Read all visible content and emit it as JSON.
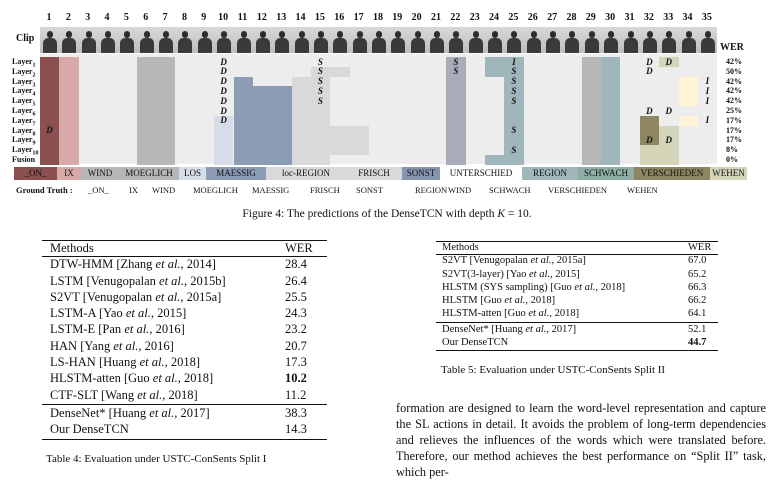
{
  "figure": {
    "column_numbers": [
      "1",
      "2",
      "3",
      "4",
      "5",
      "6",
      "7",
      "8",
      "9",
      "10",
      "11",
      "12",
      "13",
      "14",
      "15",
      "16",
      "17",
      "18",
      "19",
      "20",
      "21",
      "22",
      "23",
      "24",
      "25",
      "26",
      "27",
      "28",
      "29",
      "30",
      "31",
      "32",
      "33",
      "34",
      "35"
    ],
    "clip_label": "Clip",
    "wer_title": "WER",
    "layers": [
      {
        "label": "Layer",
        "sub": "1",
        "wer": "42%"
      },
      {
        "label": "Layer",
        "sub": "2",
        "wer": "50%"
      },
      {
        "label": "Layer",
        "sub": "3",
        "wer": "42%"
      },
      {
        "label": "Layer",
        "sub": "4",
        "wer": "42%"
      },
      {
        "label": "Layer",
        "sub": "5",
        "wer": "42%"
      },
      {
        "label": "Layer",
        "sub": "6",
        "wer": "25%"
      },
      {
        "label": "Layer",
        "sub": "7",
        "wer": "17%"
      },
      {
        "label": "Layer",
        "sub": "8",
        "wer": "17%"
      },
      {
        "label": "Layer",
        "sub": "9",
        "wer": "17%"
      },
      {
        "label": "Layer",
        "sub": "10",
        "wer": "8%"
      },
      {
        "label": "Fusion",
        "sub": "",
        "wer": "0%"
      }
    ],
    "marks": [
      "D",
      "S",
      "I"
    ],
    "predictions": [
      "_ON_",
      "IX",
      "WIND",
      "MOEGLICH",
      "LOS",
      "MAESSIG",
      "loc-REGION",
      "FRISCH",
      "SONST",
      "UNTERSCHIED",
      "REGION",
      "SCHWACH",
      "VERSCHIEDEN",
      "WEHEN"
    ],
    "ground_truth_label": "Ground Truth :",
    "ground_truth": [
      "_ON_",
      "IX",
      "WIND",
      "MOEGLICH",
      "MAESSIG",
      "FRISCH",
      "SONST",
      "REGION",
      "WIND",
      "SCHWACH",
      "VERSCHIEDEN",
      "WEHEN"
    ],
    "caption": "Figure 4: The predictions of the DenseTCN with depth K = 10."
  },
  "table4": {
    "headers": [
      "Methods",
      "WER"
    ],
    "rows": [
      {
        "method": "DTW-HMM [Zhang et al., 2014]",
        "wer": "28.4"
      },
      {
        "method": "LSTM [Venugopalan et al., 2015b]",
        "wer": "26.4"
      },
      {
        "method": "S2VT [Venugopalan et al., 2015a]",
        "wer": "25.5"
      },
      {
        "method": "LSTM-A [Yao et al., 2015]",
        "wer": "24.3"
      },
      {
        "method": "LSTM-E [Pan et al., 2016]",
        "wer": "23.2"
      },
      {
        "method": "HAN [Yang et al., 2016]",
        "wer": "20.7"
      },
      {
        "method": "LS-HAN [Huang et al., 2018]",
        "wer": "17.3"
      },
      {
        "method": "HLSTM-atten [Guo et al., 2018]",
        "wer": "10.2",
        "bold": true
      },
      {
        "method": "CTF-SLT [Wang et al., 2018]",
        "wer": "11.2"
      },
      {
        "method": "DenseNet* [Huang et al., 2017]",
        "wer": "38.3"
      },
      {
        "method": "Our DenseTCN",
        "wer": "14.3"
      }
    ],
    "caption": "Table 4: Evaluation under USTC-ConSents Split I"
  },
  "table5": {
    "headers": [
      "Methods",
      "WER"
    ],
    "rows": [
      {
        "method": "S2VT [Venugopalan et al., 2015a]",
        "wer": "67.0"
      },
      {
        "method": "S2VT(3-layer) [Yao et al., 2015]",
        "wer": "65.2"
      },
      {
        "method": "HLSTM (SYS sampling) [Guo et al., 2018]",
        "wer": "66.3"
      },
      {
        "method": "HLSTM [Guo et al., 2018]",
        "wer": "66.2"
      },
      {
        "method": "HLSTM-atten [Guo et al., 2018]",
        "wer": "64.1"
      },
      {
        "method": "DenseNet* [Huang et al., 2017]",
        "wer": "52.1"
      },
      {
        "method": "Our DenseTCN",
        "wer": "44.7",
        "bold": true
      }
    ],
    "caption": "Table 5: Evaluation under USTC-ConSents Split II"
  },
  "paragraph": "formation are designed to learn the word-level representation and capture the SL actions in detail. It avoids the problem of long-term dependencies and relieves the influences of the words which were translated before. Therefore, our method achieves the best performance on “Split II” task, which per-",
  "colors": {
    "on": "#8b4f4f",
    "ix": "#d9a9a9",
    "wind": "#b7b7b7",
    "los": "#d6dde6",
    "maessig": "#8c9cb5",
    "region_light": "#d9d9d9",
    "sonst": "#8695ad",
    "unterschied": "#a7acb8",
    "region": "#9fb6bb",
    "schwach": "#8faea5",
    "verschieden": "#8e8660",
    "wehen": "#d3d4b8",
    "highlight": "#fff5d6"
  }
}
